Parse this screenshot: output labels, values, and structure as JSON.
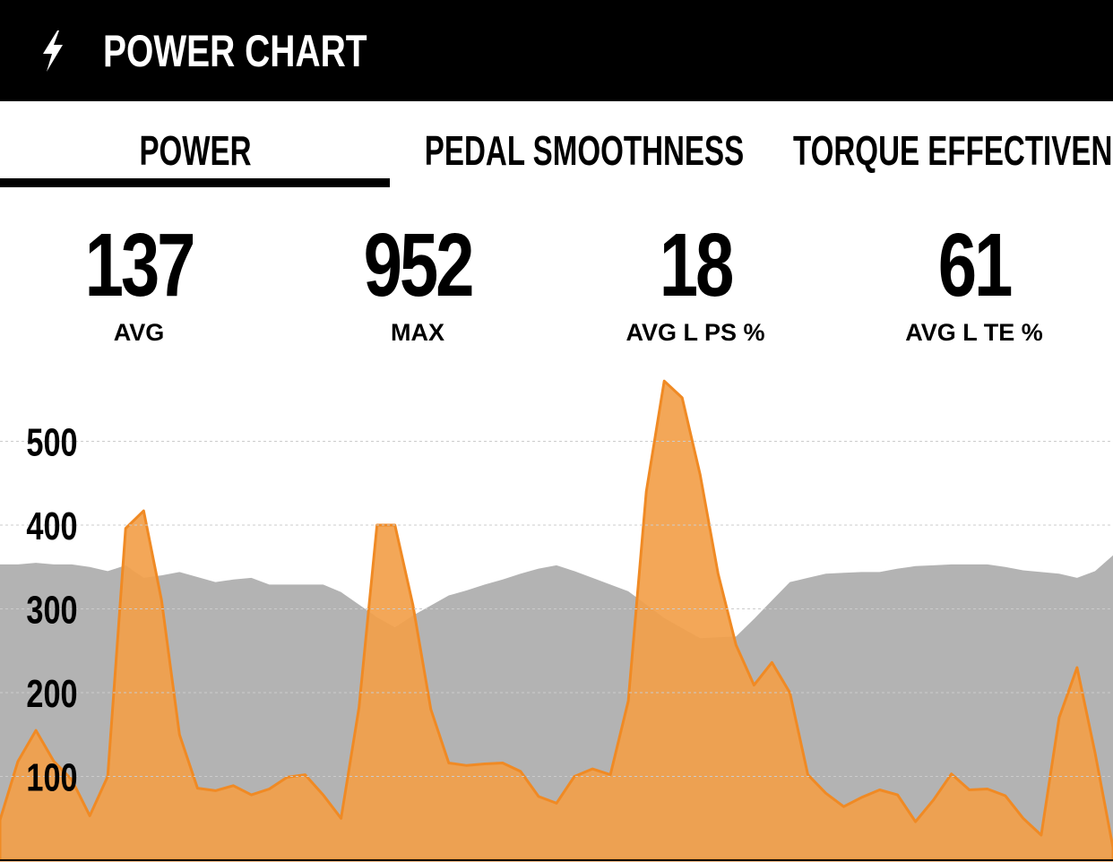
{
  "header": {
    "title": "POWER CHART"
  },
  "tabs": [
    "POWER",
    "PEDAL SMOOTHNESS",
    "TORQUE EFFECTIVENESS"
  ],
  "stats": [
    {
      "value": 137,
      "label": "AVG"
    },
    {
      "value": 952,
      "label": "MAX"
    },
    {
      "value": 18,
      "label": "AVG L PS %"
    },
    {
      "value": 61,
      "label": "AVG L TE %"
    }
  ],
  "chart_data": {
    "type": "area",
    "ylim": [
      0,
      575
    ],
    "yticks": [
      100,
      200,
      300,
      400,
      500
    ],
    "grid": true,
    "series": [
      {
        "color": "#b3b3b3",
        "values": [
          353,
          353,
          355,
          353,
          353,
          350,
          345,
          352,
          337,
          340,
          344,
          338,
          332,
          335,
          337,
          329,
          329,
          329,
          329,
          320,
          305,
          290,
          278,
          292,
          304,
          316,
          322,
          329,
          335,
          342,
          348,
          352,
          345,
          337,
          329,
          321,
          305,
          289,
          277,
          265,
          266,
          267,
          288,
          310,
          332,
          337,
          342,
          343,
          344,
          344,
          348,
          351,
          352,
          353,
          353,
          353,
          350,
          346,
          344,
          342,
          337,
          345,
          364
        ]
      },
      {
        "color": "#f2a04a",
        "values": [
          48,
          118,
          155,
          118,
          96,
          53,
          100,
          396,
          417,
          310,
          150,
          86,
          83,
          89,
          78,
          85,
          99,
          102,
          78,
          50,
          182,
          400,
          400,
          305,
          180,
          116,
          113,
          115,
          116,
          106,
          76,
          68,
          100,
          109,
          102,
          190,
          440,
          572,
          552,
          460,
          342,
          257,
          209,
          236,
          200,
          102,
          80,
          64,
          75,
          84,
          78,
          46,
          72,
          103,
          84,
          85,
          77,
          50,
          30,
          170,
          230,
          128,
          15
        ]
      }
    ]
  }
}
